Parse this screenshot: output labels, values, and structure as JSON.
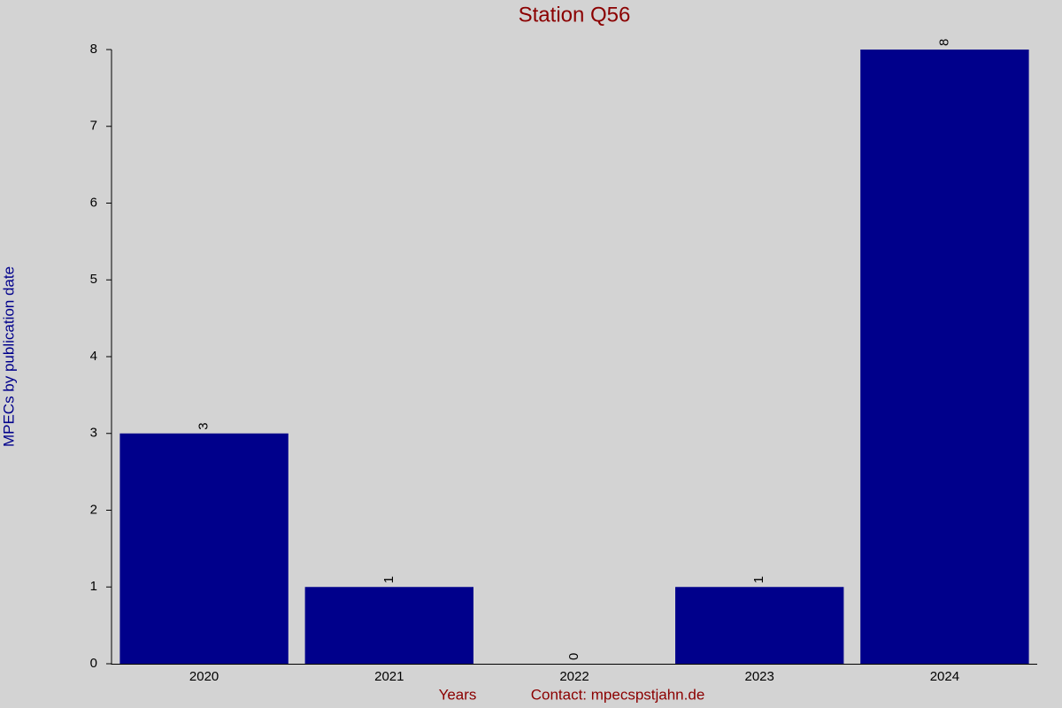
{
  "chart_data": {
    "type": "bar",
    "title": "Station Q56",
    "y_label": "MPECs by publication date",
    "x_label": "Years",
    "footer": "Contact: mpecspstjahn.de",
    "categories": [
      "2020",
      "2021",
      "2022",
      "2023",
      "2024"
    ],
    "values": [
      3,
      1,
      0,
      1,
      8
    ],
    "color": "#00008b",
    "ylim": [
      0,
      8
    ],
    "yticks": [
      0,
      1,
      2,
      3,
      4,
      5,
      6,
      7,
      8
    ]
  }
}
